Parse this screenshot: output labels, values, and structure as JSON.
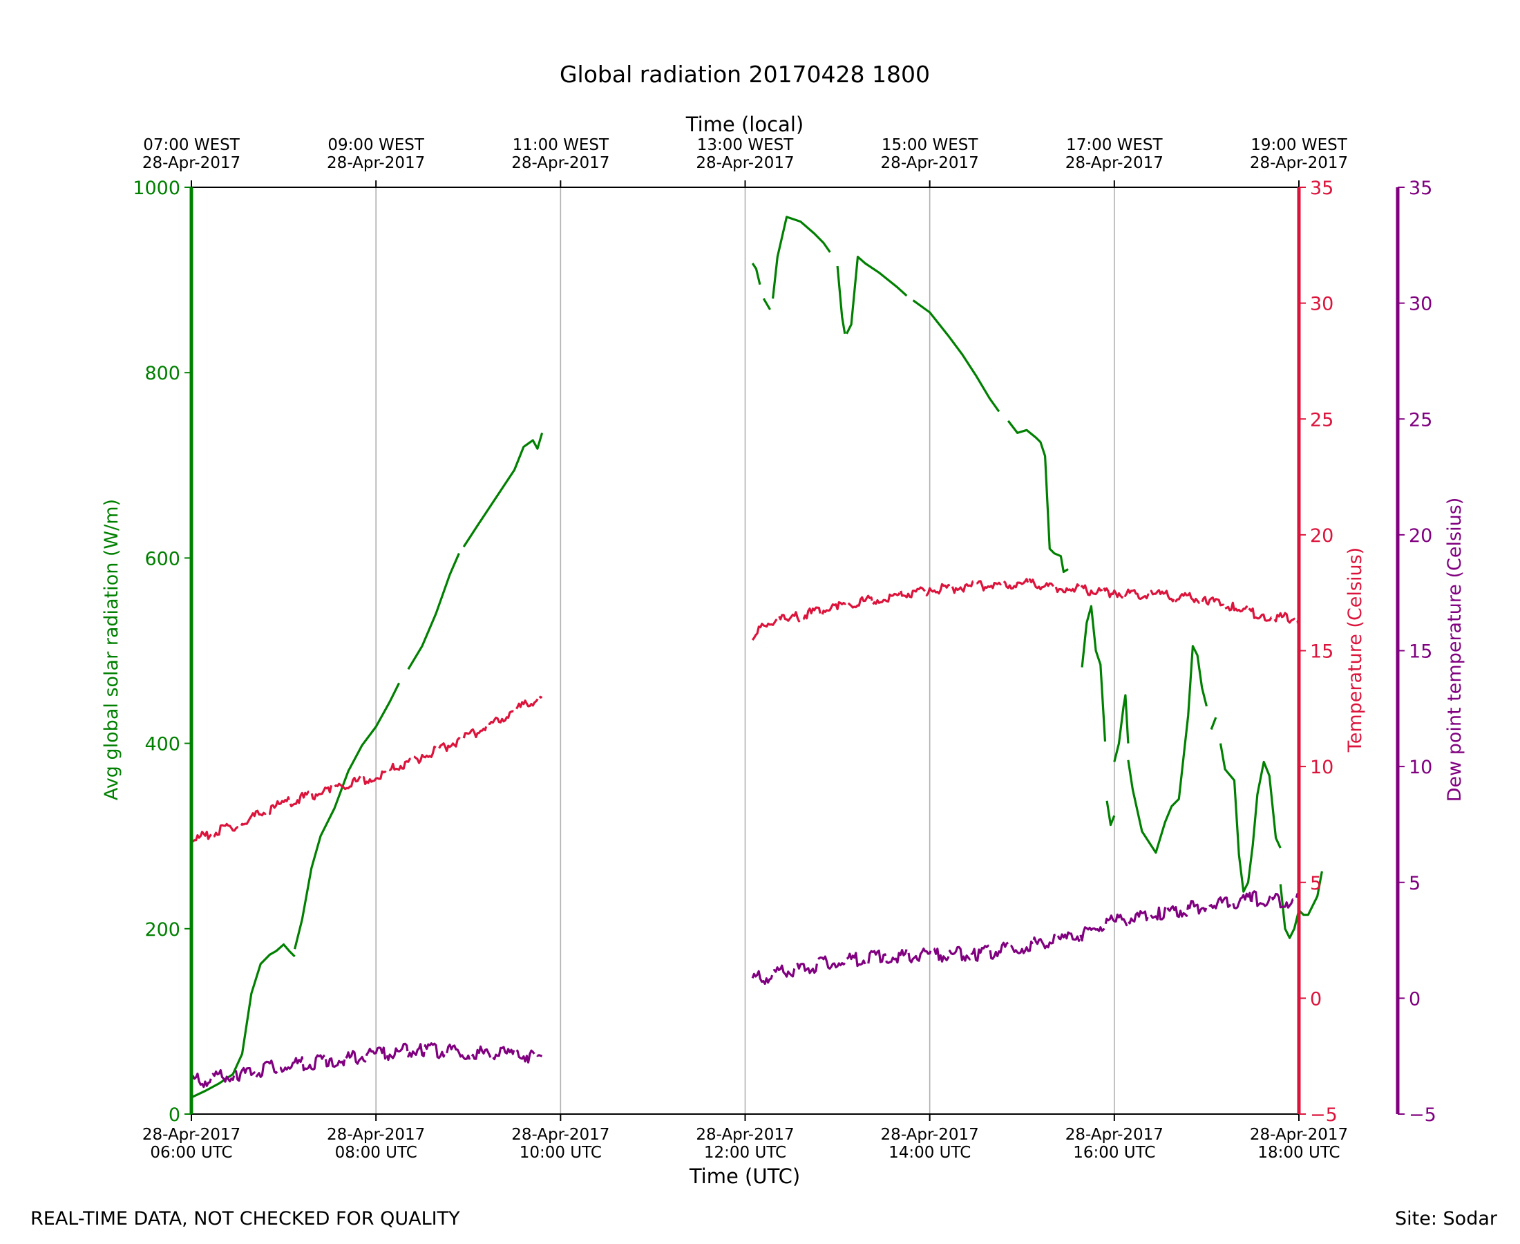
{
  "chart_data": {
    "type": "line",
    "title": "Global radiation 20170428 1800",
    "xlabel": "Time (UTC)",
    "x2label": "Time (local)",
    "ylabel": "Avg global solar radiation (W/m)",
    "y2label": "Temperature (Celsius)",
    "y3label": "Dew point temperature (Celsius)",
    "x_ticks_bottom": [
      [
        "28-Apr-2017",
        "06:00 UTC"
      ],
      [
        "28-Apr-2017",
        "08:00 UTC"
      ],
      [
        "28-Apr-2017",
        "10:00 UTC"
      ],
      [
        "28-Apr-2017",
        "12:00 UTC"
      ],
      [
        "28-Apr-2017",
        "14:00 UTC"
      ],
      [
        "28-Apr-2017",
        "16:00 UTC"
      ],
      [
        "28-Apr-2017",
        "18:00 UTC"
      ]
    ],
    "x_ticks_top": [
      [
        "07:00 WEST",
        "28-Apr-2017"
      ],
      [
        "09:00 WEST",
        "28-Apr-2017"
      ],
      [
        "11:00 WEST",
        "28-Apr-2017"
      ],
      [
        "13:00 WEST",
        "28-Apr-2017"
      ],
      [
        "15:00 WEST",
        "28-Apr-2017"
      ],
      [
        "17:00 WEST",
        "28-Apr-2017"
      ],
      [
        "19:00 WEST",
        "28-Apr-2017"
      ]
    ],
    "x_tick_hours": [
      6,
      8,
      10,
      12,
      14,
      16,
      18
    ],
    "xlim_hours_utc": [
      6,
      18
    ],
    "ylim": [
      0,
      1000
    ],
    "y_ticks": [
      0,
      200,
      400,
      600,
      800,
      1000
    ],
    "y2lim": [
      -5,
      35
    ],
    "y2_ticks": [
      -5,
      0,
      5,
      10,
      15,
      20,
      25,
      30,
      35
    ],
    "y3lim": [
      -5,
      35
    ],
    "y3_ticks": [
      -5,
      0,
      5,
      10,
      15,
      20,
      25,
      30,
      35
    ],
    "grid": "vertical",
    "colors": {
      "radiation": "#008000",
      "temperature": "#dc143c",
      "dewpoint": "#800080"
    },
    "series": [
      {
        "name": "Avg global solar radiation",
        "axis": "left",
        "color": "#008000",
        "segments": [
          [
            [
              6.0,
              18
            ],
            [
              6.15,
              25
            ],
            [
              6.3,
              33
            ],
            [
              6.45,
              43
            ],
            [
              6.55,
              65
            ],
            [
              6.65,
              130
            ],
            [
              6.75,
              162
            ],
            [
              6.85,
              172
            ],
            [
              6.92,
              176
            ],
            [
              7.0,
              183
            ],
            [
              7.06,
              176
            ],
            [
              7.12,
              170
            ]
          ],
          [
            [
              7.12,
              178
            ],
            [
              7.2,
              210
            ],
            [
              7.3,
              265
            ],
            [
              7.4,
              300
            ],
            [
              7.55,
              330
            ],
            [
              7.7,
              370
            ],
            [
              7.85,
              398
            ],
            [
              8.0,
              418
            ],
            [
              8.15,
              445
            ],
            [
              8.25,
              465
            ]
          ],
          [
            [
              8.35,
              480
            ],
            [
              8.5,
              505
            ],
            [
              8.65,
              540
            ],
            [
              8.8,
              582
            ],
            [
              8.9,
              605
            ]
          ],
          [
            [
              8.95,
              612
            ],
            [
              9.1,
              635
            ],
            [
              9.3,
              665
            ],
            [
              9.5,
              695
            ],
            [
              9.6,
              720
            ],
            [
              9.7,
              727
            ],
            [
              9.75,
              718
            ],
            [
              9.8,
              735
            ]
          ]
        ]
      },
      {
        "name": "Avg global solar radiation",
        "axis": "left",
        "color": "#008000",
        "segments": [
          [
            [
              12.08,
              918
            ],
            [
              12.12,
              912
            ],
            [
              12.16,
              895
            ]
          ],
          [
            [
              12.2,
              880
            ],
            [
              12.27,
              868
            ]
          ],
          [
            [
              12.3,
              880
            ],
            [
              12.35,
              925
            ],
            [
              12.45,
              968
            ],
            [
              12.6,
              963
            ],
            [
              12.75,
              950
            ],
            [
              12.85,
              940
            ],
            [
              12.92,
              930
            ]
          ],
          [
            [
              13.0,
              915
            ],
            [
              13.05,
              860
            ],
            [
              13.08,
              842
            ]
          ],
          [
            [
              13.1,
              842
            ],
            [
              13.15,
              852
            ],
            [
              13.22,
              925
            ],
            [
              13.3,
              918
            ],
            [
              13.45,
              908
            ],
            [
              13.55,
              900
            ],
            [
              13.65,
              892
            ],
            [
              13.75,
              883
            ]
          ],
          [
            [
              13.82,
              878
            ],
            [
              14.0,
              865
            ],
            [
              14.2,
              840
            ],
            [
              14.35,
              820
            ],
            [
              14.5,
              797
            ],
            [
              14.65,
              772
            ],
            [
              14.75,
              758
            ]
          ],
          [
            [
              14.85,
              748
            ],
            [
              14.95,
              735
            ],
            [
              15.05,
              738
            ],
            [
              15.15,
              730
            ],
            [
              15.2,
              725
            ],
            [
              15.25,
              710
            ],
            [
              15.3,
              610
            ],
            [
              15.35,
              605
            ],
            [
              15.42,
              602
            ],
            [
              15.45,
              585
            ],
            [
              15.5,
              588
            ]
          ],
          [
            [
              15.65,
              482
            ],
            [
              15.7,
              530
            ],
            [
              15.75,
              548
            ],
            [
              15.8,
              500
            ],
            [
              15.85,
              485
            ],
            [
              15.9,
              402
            ]
          ],
          [
            [
              15.92,
              338
            ],
            [
              15.96,
              312
            ],
            [
              16.0,
              322
            ]
          ],
          [
            [
              16.0,
              380
            ],
            [
              16.05,
              400
            ],
            [
              16.1,
              440
            ],
            [
              16.12,
              452
            ],
            [
              16.15,
              400
            ]
          ],
          [
            [
              16.15,
              382
            ],
            [
              16.2,
              350
            ],
            [
              16.3,
              305
            ],
            [
              16.45,
              282
            ],
            [
              16.55,
              315
            ],
            [
              16.62,
              332
            ],
            [
              16.7,
              340
            ],
            [
              16.8,
              430
            ],
            [
              16.85,
              505
            ],
            [
              16.9,
              495
            ],
            [
              16.95,
              460
            ],
            [
              17.0,
              440
            ]
          ],
          [
            [
              17.05,
              415
            ],
            [
              17.1,
              428
            ]
          ],
          [
            [
              17.15,
              400
            ],
            [
              17.2,
              372
            ],
            [
              17.3,
              360
            ],
            [
              17.35,
              280
            ],
            [
              17.4,
              240
            ],
            [
              17.45,
              250
            ],
            [
              17.5,
              290
            ],
            [
              17.55,
              345
            ],
            [
              17.62,
              380
            ],
            [
              17.68,
              365
            ],
            [
              17.75,
              298
            ],
            [
              17.8,
              287
            ]
          ],
          [
            [
              17.8,
              248
            ],
            [
              17.85,
              200
            ],
            [
              17.9,
              190
            ],
            [
              17.95,
              200
            ],
            [
              18.0,
              220
            ],
            [
              18.05,
              215
            ],
            [
              18.1,
              215
            ],
            [
              18.15,
              225
            ],
            [
              18.2,
              235
            ],
            [
              18.25,
              262
            ]
          ]
        ]
      },
      {
        "name": "Temperature",
        "axis": "right",
        "color": "#dc143c",
        "segments": [
          [
            [
              6.0,
              6.8
            ],
            [
              6.5,
              7.5
            ],
            [
              7.0,
              8.4
            ],
            [
              7.5,
              9.0
            ],
            [
              8.0,
              9.6
            ],
            [
              8.5,
              10.4
            ],
            [
              9.0,
              11.3
            ],
            [
              9.5,
              12.4
            ],
            [
              9.8,
              13.0
            ]
          ],
          [
            [
              12.08,
              15.5
            ],
            [
              12.2,
              16.2
            ],
            [
              12.5,
              16.4
            ],
            [
              13.0,
              16.9
            ],
            [
              13.5,
              17.3
            ],
            [
              14.0,
              17.6
            ],
            [
              14.5,
              17.8
            ],
            [
              15.0,
              17.9
            ],
            [
              15.5,
              17.7
            ],
            [
              16.0,
              17.5
            ],
            [
              16.5,
              17.4
            ],
            [
              17.0,
              17.2
            ],
            [
              17.3,
              16.9
            ],
            [
              17.6,
              16.5
            ],
            [
              18.0,
              16.4
            ]
          ]
        ]
      },
      {
        "name": "Dew point temperature",
        "axis": "right2",
        "color": "#800080",
        "segments": [
          [
            [
              6.0,
              -3.6
            ],
            [
              6.5,
              -3.3
            ],
            [
              7.0,
              -2.9
            ],
            [
              7.5,
              -2.7
            ],
            [
              8.0,
              -2.4
            ],
            [
              8.5,
              -2.2
            ],
            [
              9.0,
              -2.4
            ],
            [
              9.5,
              -2.4
            ],
            [
              9.8,
              -2.5
            ]
          ],
          [
            [
              12.08,
              0.8
            ],
            [
              12.5,
              1.2
            ],
            [
              13.0,
              1.6
            ],
            [
              13.5,
              1.8
            ],
            [
              14.0,
              1.9
            ],
            [
              14.5,
              1.9
            ],
            [
              15.0,
              2.2
            ],
            [
              15.5,
              2.6
            ],
            [
              16.0,
              3.3
            ],
            [
              16.5,
              3.7
            ],
            [
              17.0,
              4.0
            ],
            [
              17.5,
              4.3
            ],
            [
              18.0,
              4.2
            ]
          ]
        ]
      }
    ]
  },
  "footer": {
    "left_note": "REAL-TIME DATA, NOT CHECKED FOR QUALITY",
    "right_note": "Site: Sodar"
  }
}
